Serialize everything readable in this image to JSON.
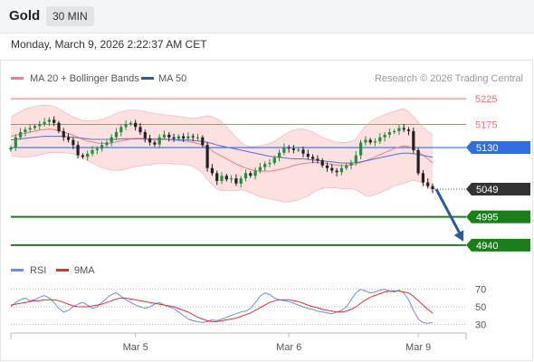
{
  "header": {
    "title": "Gold",
    "timeframe": "30 MIN"
  },
  "datetime": "Monday, March 9, 2026 2:22:37 AM CET",
  "legend": {
    "ma20_bb": "MA 20 + Bollinger Bands",
    "ma50": "MA 50",
    "credit": "Research © 2026 Trading Central"
  },
  "rsi_legend": {
    "rsi": "RSI",
    "ma9": "9MA"
  },
  "colors": {
    "resistance": "#f26d6d",
    "support": "#1a7f1a",
    "pivot": "#2f6fe0",
    "ma20": "#f08080",
    "ma50": "#5b6ec9",
    "band": "#fde0e0",
    "up": "#1f8f3a",
    "down": "#222222",
    "arrow": "#2a5c9a",
    "rsi": "#6d8ee6",
    "rsi_ma": "#e03030"
  },
  "chart_data": [
    {
      "type": "candlestick",
      "x_ticks": [
        "Mar 5",
        "Mar 6",
        "Mar 9"
      ],
      "ylim": [
        4915,
        5250
      ],
      "levels": [
        {
          "label": "5225",
          "value": 5225,
          "kind": "resistance"
        },
        {
          "label": "5175",
          "value": 5175,
          "kind": "resistance"
        },
        {
          "label": "5130",
          "value": 5130,
          "kind": "pivot"
        },
        {
          "label": "5049",
          "value": 5049,
          "kind": "last"
        },
        {
          "label": "4995",
          "value": 4995,
          "kind": "support"
        },
        {
          "label": "4940",
          "value": 4940,
          "kind": "support"
        }
      ],
      "close": [
        5130,
        5150,
        5160,
        5165,
        5168,
        5172,
        5176,
        5180,
        5184,
        5178,
        5162,
        5150,
        5145,
        5135,
        5115,
        5112,
        5118,
        5125,
        5128,
        5135,
        5140,
        5150,
        5160,
        5170,
        5176,
        5178,
        5170,
        5160,
        5148,
        5140,
        5136,
        5150,
        5155,
        5150,
        5147,
        5152,
        5148,
        5152,
        5150,
        5150,
        5135,
        5090,
        5080,
        5065,
        5075,
        5068,
        5070,
        5060,
        5070,
        5080,
        5075,
        5085,
        5092,
        5098,
        5100,
        5110,
        5120,
        5130,
        5128,
        5125,
        5126,
        5118,
        5112,
        5108,
        5105,
        5095,
        5090,
        5085,
        5082,
        5090,
        5095,
        5100,
        5115,
        5140,
        5145,
        5140,
        5142,
        5150,
        5155,
        5160,
        5162,
        5168,
        5165,
        5162,
        5125,
        5080,
        5062,
        5055,
        5049
      ],
      "ma20": [
        5152,
        5154,
        5156,
        5158,
        5160,
        5162,
        5164,
        5165,
        5166,
        5165,
        5163,
        5160,
        5157,
        5154,
        5150,
        5146,
        5143,
        5141,
        5139,
        5138,
        5138,
        5139,
        5141,
        5143,
        5145,
        5147,
        5148,
        5148,
        5148,
        5147,
        5147,
        5147,
        5147,
        5146,
        5145,
        5144,
        5143,
        5142,
        5140,
        5138,
        5135,
        5130,
        5124,
        5118,
        5113,
        5108,
        5103,
        5098,
        5094,
        5090,
        5087,
        5085,
        5084,
        5084,
        5084,
        5085,
        5087,
        5089,
        5092,
        5095,
        5097,
        5099,
        5100,
        5101,
        5101,
        5100,
        5099,
        5097,
        5096,
        5095,
        5095,
        5096,
        5098,
        5101,
        5104,
        5108,
        5112,
        5116,
        5120,
        5124,
        5128,
        5131,
        5133,
        5132,
        5128,
        5122,
        5115,
        5108,
        5100
      ],
      "bb_upper": [
        5190,
        5195,
        5200,
        5205,
        5208,
        5210,
        5212,
        5213,
        5212,
        5210,
        5206,
        5200,
        5195,
        5190,
        5186,
        5183,
        5182,
        5182,
        5183,
        5185,
        5188,
        5192,
        5196,
        5200,
        5202,
        5203,
        5203,
        5202,
        5200,
        5198,
        5196,
        5195,
        5194,
        5193,
        5192,
        5190,
        5189,
        5188,
        5187,
        5188,
        5190,
        5192,
        5190,
        5186,
        5180,
        5170,
        5160,
        5150,
        5140,
        5134,
        5132,
        5132,
        5134,
        5136,
        5138,
        5142,
        5148,
        5154,
        5160,
        5164,
        5166,
        5166,
        5164,
        5160,
        5155,
        5150,
        5146,
        5143,
        5141,
        5140,
        5140,
        5142,
        5148,
        5160,
        5172,
        5180,
        5186,
        5190,
        5194,
        5198,
        5200,
        5204,
        5206,
        5200,
        5190,
        5180,
        5170,
        5162,
        5155
      ],
      "bb_lower": [
        5114,
        5113,
        5112,
        5111,
        5112,
        5114,
        5116,
        5117,
        5120,
        5120,
        5120,
        5120,
        5119,
        5118,
        5114,
        5109,
        5104,
        5100,
        5095,
        5091,
        5088,
        5086,
        5086,
        5086,
        5088,
        5091,
        5093,
        5094,
        5096,
        5096,
        5098,
        5099,
        5100,
        5099,
        5098,
        5098,
        5097,
        5096,
        5093,
        5088,
        5080,
        5068,
        5058,
        5050,
        5046,
        5046,
        5046,
        5046,
        5048,
        5046,
        5042,
        5038,
        5034,
        5032,
        5030,
        5028,
        5026,
        5024,
        5024,
        5026,
        5028,
        5032,
        5036,
        5042,
        5047,
        5050,
        5052,
        5051,
        5051,
        5050,
        5050,
        5050,
        5048,
        5042,
        5036,
        5036,
        5038,
        5042,
        5046,
        5050,
        5056,
        5058,
        5060,
        5064,
        5066,
        5064,
        5060,
        5054,
        5045
      ],
      "ma50": [
        5145,
        5146,
        5147,
        5148,
        5149,
        5150,
        5151,
        5152,
        5152,
        5152,
        5152,
        5152,
        5151,
        5150,
        5149,
        5148,
        5147,
        5146,
        5146,
        5146,
        5146,
        5146,
        5146,
        5147,
        5147,
        5147,
        5147,
        5147,
        5146,
        5146,
        5146,
        5146,
        5146,
        5146,
        5145,
        5145,
        5145,
        5145,
        5144,
        5143,
        5142,
        5140,
        5138,
        5135,
        5133,
        5131,
        5129,
        5127,
        5125,
        5123,
        5121,
        5119,
        5117,
        5115,
        5113,
        5112,
        5111,
        5110,
        5109,
        5108,
        5108,
        5108,
        5107,
        5106,
        5105,
        5104,
        5103,
        5102,
        5101,
        5100,
        5100,
        5100,
        5101,
        5102,
        5104,
        5106,
        5108,
        5110,
        5112,
        5114,
        5116,
        5118,
        5119,
        5119,
        5118,
        5117,
        5115,
        5113,
        5111
      ]
    },
    {
      "type": "line",
      "name": "RSI",
      "y_ticks": [
        "70",
        "50",
        "30"
      ],
      "ylim": [
        22,
        78
      ],
      "rsi": [
        50,
        55,
        58,
        60,
        57,
        58,
        61,
        63,
        60,
        55,
        48,
        44,
        46,
        50,
        53,
        55,
        52,
        48,
        50,
        55,
        60,
        64,
        66,
        62,
        58,
        55,
        52,
        50,
        48,
        50,
        53,
        55,
        52,
        50,
        48,
        44,
        40,
        36,
        34,
        33,
        32,
        33,
        35,
        34,
        36,
        38,
        40,
        42,
        44,
        45,
        48,
        55,
        62,
        66,
        64,
        60,
        58,
        57,
        56,
        54,
        52,
        50,
        48,
        47,
        45,
        44,
        43,
        42,
        44,
        46,
        50,
        58,
        66,
        70,
        68,
        66,
        67,
        69,
        70,
        68,
        67,
        69,
        66,
        58,
        46,
        36,
        32,
        31,
        32
      ],
      "rsi_ma": [
        52,
        53,
        54,
        55,
        56,
        57,
        57,
        58,
        58,
        58,
        57,
        55,
        53,
        51,
        50,
        50,
        50,
        51,
        52,
        53,
        55,
        57,
        59,
        60,
        60,
        59,
        58,
        57,
        56,
        55,
        54,
        53,
        52,
        51,
        50,
        48,
        46,
        44,
        41,
        38,
        36,
        34,
        33,
        33,
        34,
        35,
        36,
        37,
        39,
        41,
        43,
        46,
        49,
        52,
        55,
        57,
        58,
        58,
        58,
        57,
        56,
        54,
        52,
        50,
        49,
        47,
        46,
        45,
        44,
        44,
        45,
        47,
        50,
        54,
        58,
        61,
        63,
        65,
        67,
        68,
        68,
        68,
        67,
        66,
        62,
        57,
        52,
        47,
        43
      ]
    }
  ]
}
